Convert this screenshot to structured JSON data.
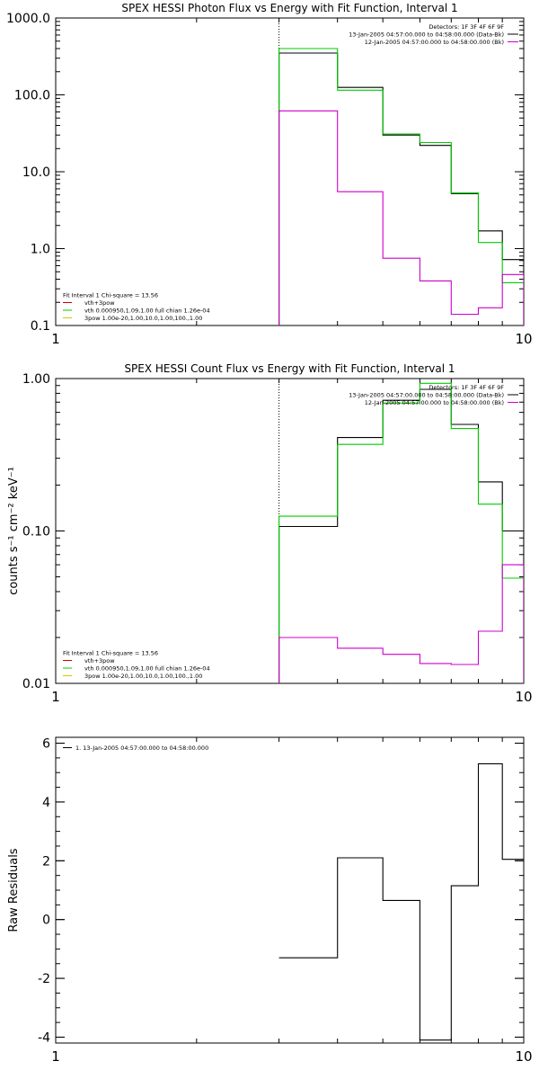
{
  "chart_data": [
    {
      "type": "line",
      "title": "SPEX HESSI Photon Flux vs Energy with Fit Function, Interval 1",
      "xlabel": "",
      "ylabel": "",
      "xscale": "log",
      "yscale": "log",
      "xlim": [
        1,
        10
      ],
      "ylim": [
        0.1,
        1000
      ],
      "xticks": [
        {
          "v": 1,
          "label": "1"
        },
        {
          "v": 10,
          "label": "10"
        }
      ],
      "yticks": [
        {
          "v": 0.1,
          "label": "0.1"
        },
        {
          "v": 1,
          "label": "1.0"
        },
        {
          "v": 10,
          "label": "10.0"
        },
        {
          "v": 100,
          "label": "100.0"
        },
        {
          "v": 1000,
          "label": "1000.0"
        }
      ],
      "marker_x": 3,
      "edges": [
        3,
        4,
        5,
        6,
        7,
        8,
        9,
        10
      ],
      "series": [
        {
          "color": "#000000",
          "values": [
            350,
            125,
            30,
            22,
            5.2,
            1.7,
            0.72
          ]
        },
        {
          "color": "#00cc00",
          "values": [
            400,
            115,
            31,
            24,
            5.3,
            1.2,
            0.36
          ]
        },
        {
          "color": "#cc00cc",
          "values": [
            62,
            5.5,
            0.75,
            0.38,
            0.14,
            0.17,
            0.46
          ]
        }
      ],
      "legend_tr": {
        "placement": "top-right",
        "lines": [
          {
            "text": "Detectors: 1F 3F 4F 6F 9F",
            "color": ""
          },
          {
            "text": "13-Jan-2005 04:57:00.000 to 04:58:00.000 (Data-Bk)",
            "color": "#000000"
          },
          {
            "text": "12-Jan-2005 04:57:00.000 to 04:58:00.000 (Bk)",
            "color": "#cc00cc"
          }
        ]
      },
      "legend_bl": {
        "placement": "bottom-left",
        "lines": [
          {
            "text": "Fit Interval 1    Chi-square = 13.56",
            "color": ""
          },
          {
            "text": "vth+3pow",
            "color": "#cc0000"
          },
          {
            "text": "vth 0.000950,1.09,1.00  full chian 1.26e-04",
            "color": "#00cc00"
          },
          {
            "text": "3pow 1.00e-20,1.00,10.0,1.00,100.,1.00",
            "color": "#cccc00"
          }
        ]
      }
    },
    {
      "type": "line",
      "title": "SPEX HESSI Count Flux vs Energy with Fit Function, Interval 1",
      "xlabel": "",
      "ylabel": "counts s⁻¹ cm⁻² keV⁻¹",
      "xscale": "log",
      "yscale": "log",
      "xlim": [
        1,
        10
      ],
      "ylim": [
        0.01,
        1
      ],
      "xticks": [
        {
          "v": 1,
          "label": "1"
        },
        {
          "v": 10,
          "label": "10"
        }
      ],
      "yticks": [
        {
          "v": 0.01,
          "label": "0.01"
        },
        {
          "v": 0.1,
          "label": "0.10"
        },
        {
          "v": 1,
          "label": "1.00"
        }
      ],
      "marker_x": 3,
      "edges": [
        3,
        4,
        5,
        6,
        7,
        8,
        9,
        10
      ],
      "series": [
        {
          "color": "#000000",
          "values": [
            0.107,
            0.41,
            0.72,
            0.85,
            0.5,
            0.21,
            0.1
          ]
        },
        {
          "color": "#00cc00",
          "values": [
            0.125,
            0.37,
            0.69,
            0.93,
            0.47,
            0.15,
            0.049
          ]
        },
        {
          "color": "#cc00cc",
          "values": [
            0.02,
            0.017,
            0.0155,
            0.0135,
            0.0133,
            0.022,
            0.06
          ]
        }
      ],
      "legend_tr": {
        "placement": "top-right",
        "lines": [
          {
            "text": "Detectors: 1F 3F 4F 6F 9F",
            "color": ""
          },
          {
            "text": "13-Jan-2005 04:57:00.000 to 04:58:00.000 (Data-Bk)",
            "color": "#000000"
          },
          {
            "text": "12-Jan-2005 04:57:00.000 to 04:58:00.000 (Bk)",
            "color": "#cc00cc"
          }
        ]
      },
      "legend_bl": {
        "placement": "bottom-left",
        "lines": [
          {
            "text": "Fit Interval 1    Chi-square = 13.56",
            "color": ""
          },
          {
            "text": "vth+3pow",
            "color": "#cc0000"
          },
          {
            "text": "vth 0.000950,1.09,1.00  full chian 1.26e-04",
            "color": "#00cc00"
          },
          {
            "text": "3pow 1.00e-20,1.00,10.0,1.00,100.,1.00",
            "color": "#cccc00"
          }
        ]
      }
    },
    {
      "type": "line",
      "title": "",
      "xlabel": "",
      "ylabel": "Raw Residuals",
      "xscale": "log",
      "yscale": "linear",
      "xlim": [
        1,
        10
      ],
      "ylim": [
        -4.2,
        6.2
      ],
      "xticks": [
        {
          "v": 1,
          "label": "1"
        },
        {
          "v": 10,
          "label": "10"
        }
      ],
      "yticks": [
        {
          "v": -4,
          "label": "-4"
        },
        {
          "v": -2,
          "label": "-2"
        },
        {
          "v": 0,
          "label": "0"
        },
        {
          "v": 2,
          "label": "2"
        },
        {
          "v": 4,
          "label": "4"
        },
        {
          "v": 6,
          "label": "6"
        }
      ],
      "edges": [
        3,
        4,
        5,
        6,
        7,
        8,
        9,
        10
      ],
      "series": [
        {
          "color": "#000000",
          "values": [
            -1.3,
            2.1,
            0.65,
            -4.1,
            1.15,
            5.3,
            2.05
          ]
        }
      ],
      "legend_tl": {
        "placement": "top-left",
        "lines": [
          {
            "text": "1. 13-Jan-2005 04:57:00.000 to 04:58:00.000",
            "color": "#000000"
          }
        ]
      }
    }
  ]
}
